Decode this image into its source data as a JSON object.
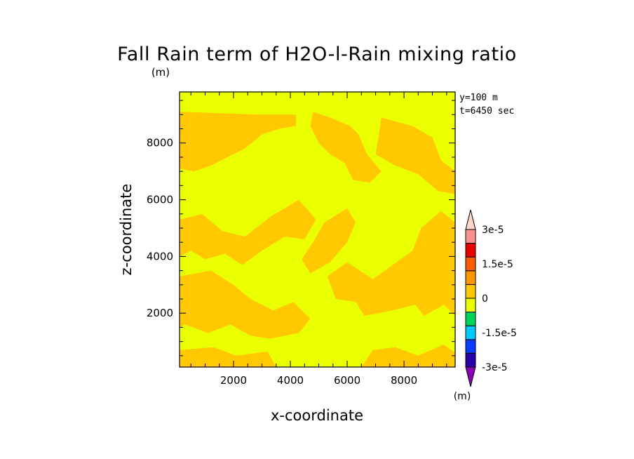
{
  "chart_data": {
    "type": "heatmap",
    "title": "Fall Rain term of H2O-l-Rain mixing ratio",
    "subtitle": "(m)",
    "xlabel": "x-coordinate",
    "ylabel": "z-coordinate",
    "xlim": [
      100,
      9800
    ],
    "ylim": [
      100,
      9800
    ],
    "xticks": [
      2000,
      4000,
      6000,
      8000
    ],
    "yticks": [
      2000,
      4000,
      6000,
      8000
    ],
    "xtick_labels": [
      "2000",
      "4000",
      "6000",
      "8000"
    ],
    "ytick_labels": [
      "2000",
      "4000",
      "6000",
      "8000"
    ],
    "annotations": [
      "y=100 m",
      "t=6450 sec"
    ],
    "colorbar": {
      "levels": [
        -3e-05,
        -2.25e-05,
        -1.5e-05,
        -7.5e-06,
        0,
        7.5e-06,
        1.5e-05,
        2.25e-05,
        3e-05
      ],
      "tick_labels": [
        "3e-5",
        "1.5e-5",
        "0",
        "-1.5e-5",
        "-3e-5"
      ],
      "unit": "(m)",
      "colors_bottom_to_top": [
        "#8c00b4",
        "#2a00a8",
        "#0a3cff",
        "#00c8ff",
        "#00d25a",
        "#eaff00",
        "#ffc800",
        "#ff9600",
        "#ff5a00",
        "#e60000",
        "#ff9090",
        "#ffd6c8"
      ]
    },
    "field_colors": {
      "zero_to_pos": "#eaff00",
      "neg_to_zero": "#ffc800"
    },
    "orange_regions": [
      [
        [
          100,
          9100
        ],
        [
          1500,
          9050
        ],
        [
          2900,
          9000
        ],
        [
          4200,
          9000
        ],
        [
          4200,
          8600
        ],
        [
          3600,
          8500
        ],
        [
          3000,
          8300
        ],
        [
          2400,
          7800
        ],
        [
          1800,
          7500
        ],
        [
          1200,
          7200
        ],
        [
          600,
          7000
        ],
        [
          100,
          7100
        ]
      ],
      [
        [
          4800,
          9100
        ],
        [
          5400,
          8900
        ],
        [
          6100,
          8600
        ],
        [
          6400,
          8300
        ],
        [
          6700,
          7600
        ],
        [
          7200,
          7000
        ],
        [
          6800,
          6600
        ],
        [
          6200,
          6700
        ],
        [
          5900,
          7300
        ],
        [
          5400,
          7600
        ],
        [
          5000,
          8000
        ],
        [
          4700,
          8600
        ]
      ],
      [
        [
          7200,
          8900
        ],
        [
          8300,
          8600
        ],
        [
          9000,
          8200
        ],
        [
          9300,
          7400
        ],
        [
          9800,
          7000
        ],
        [
          9800,
          6200
        ],
        [
          9200,
          6300
        ],
        [
          8500,
          6900
        ],
        [
          7700,
          7200
        ],
        [
          7000,
          7600
        ],
        [
          7100,
          8200
        ]
      ],
      [
        [
          6000,
          5700
        ],
        [
          5200,
          5200
        ],
        [
          4800,
          4500
        ],
        [
          4400,
          3900
        ],
        [
          4700,
          3400
        ],
        [
          5400,
          3800
        ],
        [
          6000,
          4500
        ],
        [
          6300,
          5200
        ]
      ],
      [
        [
          100,
          5300
        ],
        [
          900,
          5500
        ],
        [
          1600,
          4900
        ],
        [
          2400,
          4700
        ],
        [
          3300,
          5400
        ],
        [
          4300,
          6000
        ],
        [
          4900,
          5300
        ],
        [
          4500,
          4600
        ],
        [
          3800,
          4700
        ],
        [
          3000,
          4200
        ],
        [
          2300,
          3700
        ],
        [
          1700,
          4100
        ],
        [
          1000,
          3900
        ],
        [
          500,
          4200
        ],
        [
          100,
          4000
        ]
      ],
      [
        [
          5300,
          3300
        ],
        [
          6000,
          3800
        ],
        [
          6900,
          3200
        ],
        [
          7600,
          3700
        ],
        [
          8300,
          4200
        ],
        [
          8600,
          5000
        ],
        [
          9300,
          5600
        ],
        [
          9800,
          5200
        ],
        [
          9800,
          1900
        ],
        [
          9400,
          2300
        ],
        [
          8700,
          1900
        ],
        [
          8400,
          2300
        ],
        [
          7600,
          2100
        ],
        [
          6600,
          1900
        ],
        [
          6300,
          2400
        ],
        [
          5600,
          2500
        ]
      ],
      [
        [
          100,
          3300
        ],
        [
          1200,
          3500
        ],
        [
          2000,
          3000
        ],
        [
          2600,
          2500
        ],
        [
          3400,
          2100
        ],
        [
          4100,
          2400
        ],
        [
          4700,
          1800
        ],
        [
          4300,
          1300
        ],
        [
          3300,
          1100
        ],
        [
          2600,
          1200
        ],
        [
          1900,
          1600
        ],
        [
          1100,
          1300
        ],
        [
          300,
          1600
        ],
        [
          100,
          1500
        ]
      ],
      [
        [
          100,
          700
        ],
        [
          1300,
          800
        ],
        [
          2100,
          500
        ],
        [
          3200,
          650
        ],
        [
          3500,
          100
        ],
        [
          100,
          100
        ]
      ],
      [
        [
          6500,
          100
        ],
        [
          6900,
          700
        ],
        [
          7700,
          800
        ],
        [
          8500,
          500
        ],
        [
          9400,
          900
        ],
        [
          9800,
          600
        ],
        [
          9800,
          100
        ]
      ]
    ]
  }
}
